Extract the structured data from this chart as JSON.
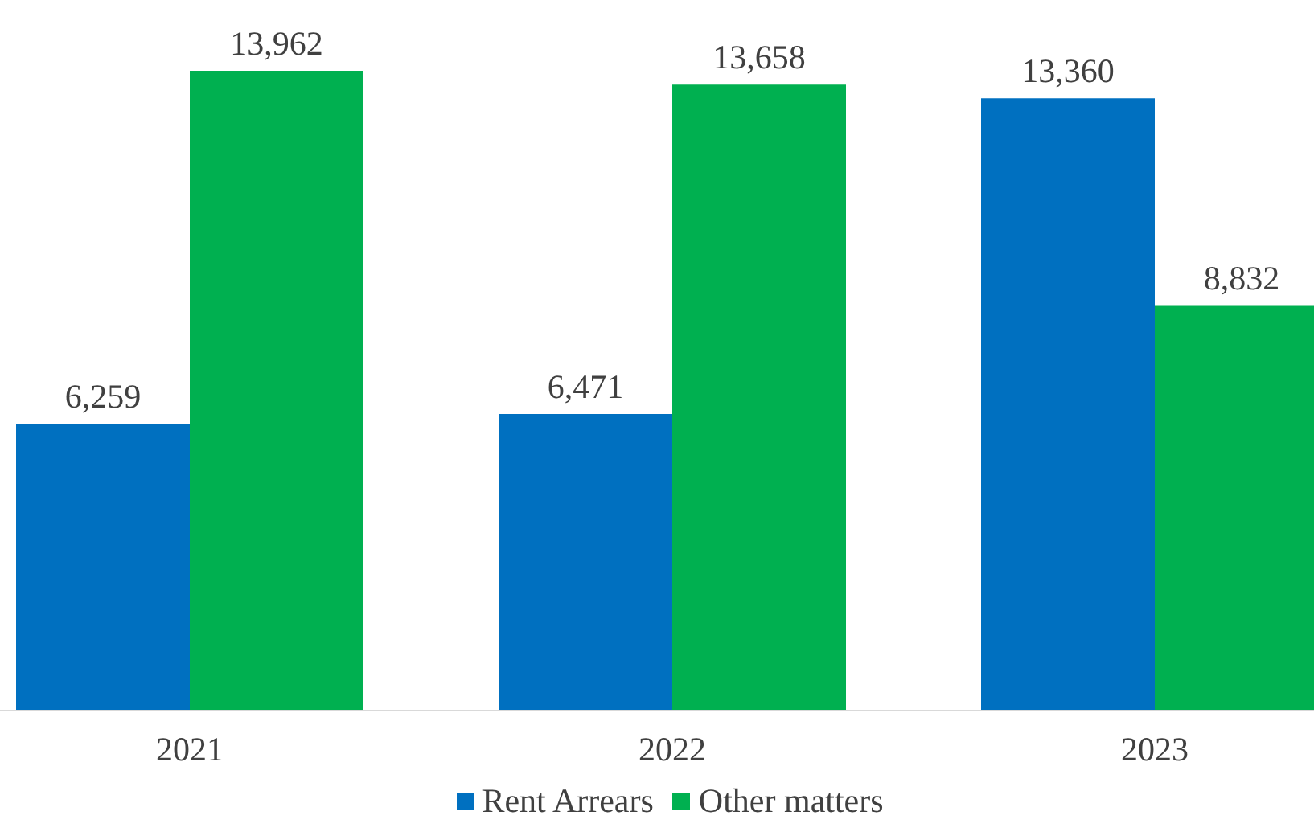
{
  "chart_data": {
    "type": "bar",
    "categories": [
      "2021",
      "2022",
      "2023"
    ],
    "series": [
      {
        "name": "Rent Arrears",
        "color": "#0070c0",
        "values": [
          6259,
          6471,
          13360
        ],
        "value_labels": [
          "6,259",
          "6,471",
          "13,360"
        ]
      },
      {
        "name": "Other matters",
        "color": "#00b050",
        "values": [
          13962,
          13658,
          8832
        ],
        "value_labels": [
          "13,962",
          "13,658",
          "8,832"
        ]
      }
    ],
    "legend": "bottom",
    "grid": false
  }
}
